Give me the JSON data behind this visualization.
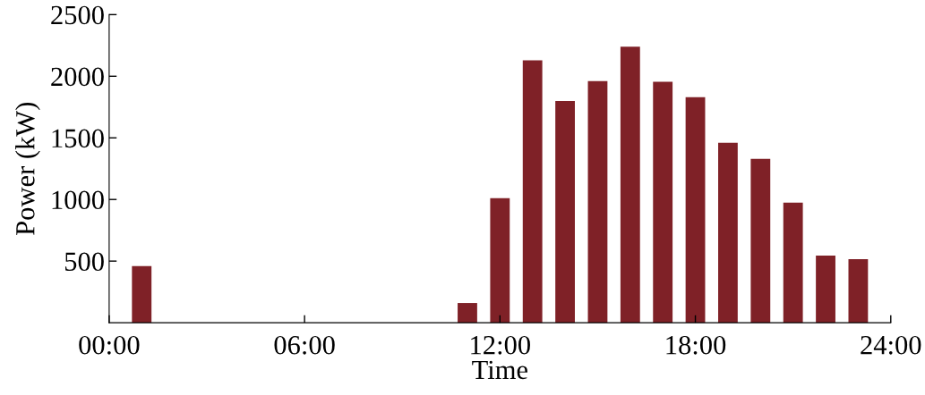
{
  "chart_data": {
    "type": "bar",
    "xlabel": "Time",
    "ylabel": "Power (kW)",
    "x": [
      1,
      11,
      12,
      13,
      14,
      15,
      16,
      17,
      18,
      19,
      20,
      21,
      22,
      23
    ],
    "values": [
      460,
      160,
      1010,
      2130,
      1800,
      1960,
      2240,
      1955,
      1830,
      1460,
      1330,
      975,
      545,
      515
    ],
    "color": "#7f2127",
    "xlim": [
      0,
      24
    ],
    "xticks": [
      {
        "value": 0,
        "label": "00:00"
      },
      {
        "value": 6,
        "label": "06:00"
      },
      {
        "value": 12,
        "label": "12:00"
      },
      {
        "value": 18,
        "label": "18:00"
      },
      {
        "value": 24,
        "label": "24:00"
      }
    ],
    "ylim": [
      0,
      2500
    ],
    "yticks": [
      500,
      1000,
      1500,
      2000,
      2500
    ],
    "grid": false,
    "legend": false
  }
}
